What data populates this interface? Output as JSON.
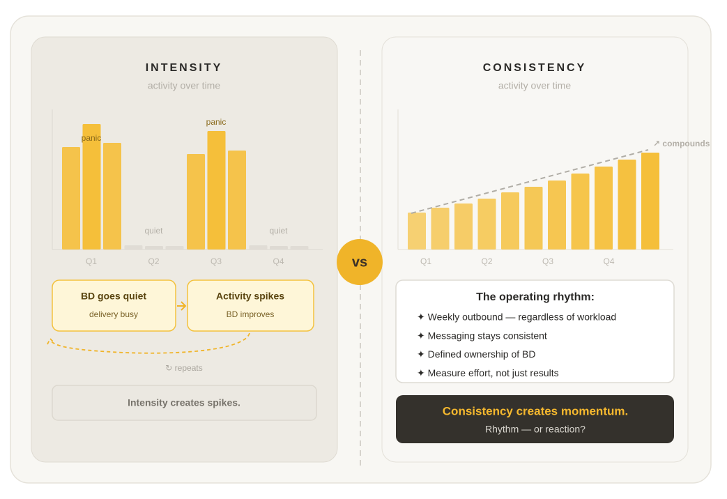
{
  "intensity": {
    "title": "INTENSITY",
    "subtitle": "activity over time",
    "chart": {
      "type": "bar",
      "ylim": [
        0,
        100
      ],
      "groups": [
        {
          "category": "Q1",
          "values": [
            73.5,
            90,
            76.5
          ],
          "color": "#f5bf3a"
        },
        {
          "category": "Q2",
          "values": [
            3,
            2.5,
            2.5
          ],
          "color": "#dedad3"
        },
        {
          "category": "Q3",
          "values": [
            68.5,
            85,
            71
          ],
          "color": "#f5bf3a"
        },
        {
          "category": "Q4",
          "values": [
            3,
            2.5,
            2.5
          ],
          "color": "#dedad3"
        }
      ],
      "annotations": [
        "panic",
        "quiet",
        "panic",
        "quiet"
      ]
    },
    "flow": [
      {
        "title": "BD goes quiet",
        "subtitle": "delivery busy"
      },
      {
        "title": "Activity spikes",
        "subtitle": "BD improves"
      }
    ],
    "loop_label": "↻ repeats",
    "summary": "Intensity creates spikes."
  },
  "vs": "vs",
  "consistency": {
    "title": "CONSISTENCY",
    "subtitle": "activity over time",
    "chart": {
      "type": "bar",
      "ylim": [
        0,
        100
      ],
      "categories": [
        "Q1",
        "Q2",
        "Q3",
        "Q4"
      ],
      "values": [
        26.5,
        30,
        33,
        36.5,
        41,
        45,
        49.5,
        54.5,
        59.5,
        64.5,
        69.5
      ],
      "color": "#f5bf3a",
      "trend_label": "↗ compounds"
    },
    "rhythm": {
      "title": "The operating rhythm:",
      "items": [
        "✦ Weekly outbound — regardless of workload",
        "✦ Messaging stays consistent",
        "✦ Defined ownership of BD",
        "✦ Measure effort, not just results"
      ]
    },
    "summary": {
      "title": "Consistency creates momentum.",
      "subtitle": "Rhythm — or reaction?"
    }
  }
}
